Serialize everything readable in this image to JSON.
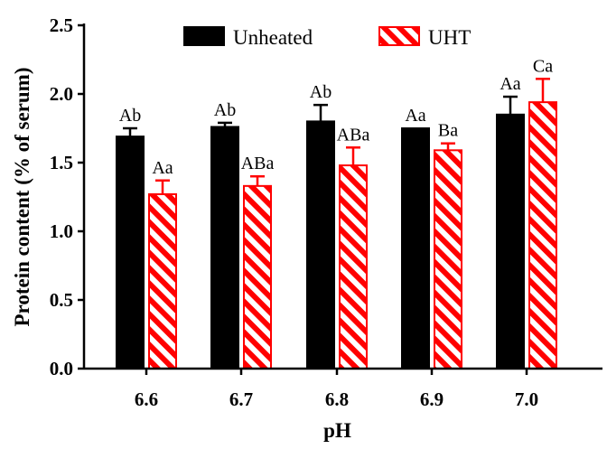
{
  "chart_data": {
    "type": "bar",
    "title": "",
    "xlabel": "pH",
    "ylabel": "Protein content (% of serum)",
    "categories": [
      "6.6",
      "6.7",
      "6.8",
      "6.9",
      "7.0"
    ],
    "ylim": [
      0,
      2.5
    ],
    "yticks": [
      "0.0",
      "0.5",
      "1.0",
      "1.5",
      "2.0",
      "2.5"
    ],
    "legend_position": "top",
    "series": [
      {
        "name": "Unheated",
        "color": "#000000",
        "pattern": "solid",
        "values": [
          1.69,
          1.76,
          1.8,
          1.75,
          1.85
        ],
        "errors": [
          0.06,
          0.03,
          0.12,
          0.0,
          0.13
        ],
        "labels": [
          "Ab",
          "Ab",
          "Ab",
          "Aa",
          "Aa"
        ]
      },
      {
        "name": "UHT",
        "color": "#ff0000",
        "pattern": "diagonal-hatch",
        "values": [
          1.27,
          1.33,
          1.48,
          1.59,
          1.94
        ],
        "errors": [
          0.1,
          0.07,
          0.13,
          0.05,
          0.17
        ],
        "labels": [
          "Aa",
          "ABa",
          "ABa",
          "Ba",
          "Ca"
        ]
      }
    ]
  }
}
